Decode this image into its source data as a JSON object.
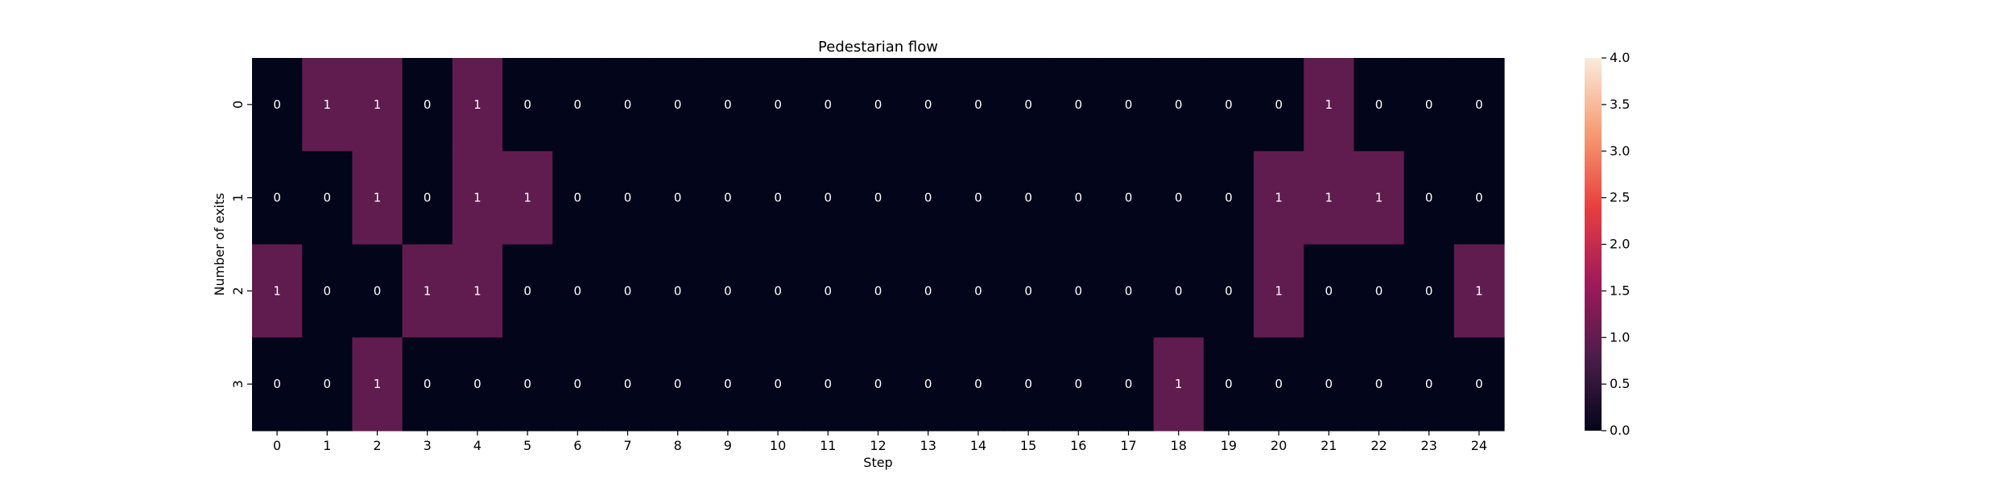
{
  "chart_data": {
    "type": "heatmap",
    "title": "Pedestarian flow",
    "xlabel": "Step",
    "ylabel": "Number of exits",
    "x_categories": [
      "0",
      "1",
      "2",
      "3",
      "4",
      "5",
      "6",
      "7",
      "8",
      "9",
      "10",
      "11",
      "12",
      "13",
      "14",
      "15",
      "16",
      "17",
      "18",
      "19",
      "20",
      "21",
      "22",
      "23",
      "24"
    ],
    "y_categories": [
      "0",
      "1",
      "2",
      "3"
    ],
    "values": [
      [
        0,
        1,
        1,
        0,
        1,
        0,
        0,
        0,
        0,
        0,
        0,
        0,
        0,
        0,
        0,
        0,
        0,
        0,
        0,
        0,
        0,
        1,
        0,
        0,
        0
      ],
      [
        0,
        0,
        1,
        0,
        1,
        1,
        0,
        0,
        0,
        0,
        0,
        0,
        0,
        0,
        0,
        0,
        0,
        0,
        0,
        0,
        1,
        1,
        1,
        0,
        0
      ],
      [
        1,
        0,
        0,
        1,
        1,
        0,
        0,
        0,
        0,
        0,
        0,
        0,
        0,
        0,
        0,
        0,
        0,
        0,
        0,
        0,
        1,
        0,
        0,
        0,
        1
      ],
      [
        0,
        0,
        1,
        0,
        0,
        0,
        0,
        0,
        0,
        0,
        0,
        0,
        0,
        0,
        0,
        0,
        0,
        0,
        1,
        0,
        0,
        0,
        0,
        0,
        0
      ]
    ],
    "annotations": true,
    "colorbar": {
      "range": [
        0,
        4.0
      ],
      "ticks": [
        "0.0",
        "0.5",
        "1.0",
        "1.5",
        "2.0",
        "2.5",
        "3.0",
        "3.5",
        "4.0"
      ],
      "colormap": "rocket",
      "stops": [
        "#03051a",
        "#4c1d4b",
        "#a11a5b",
        "#e83f3f",
        "#f69c73",
        "#faebdd"
      ]
    },
    "grid": false,
    "legend": "colorbar-right"
  }
}
